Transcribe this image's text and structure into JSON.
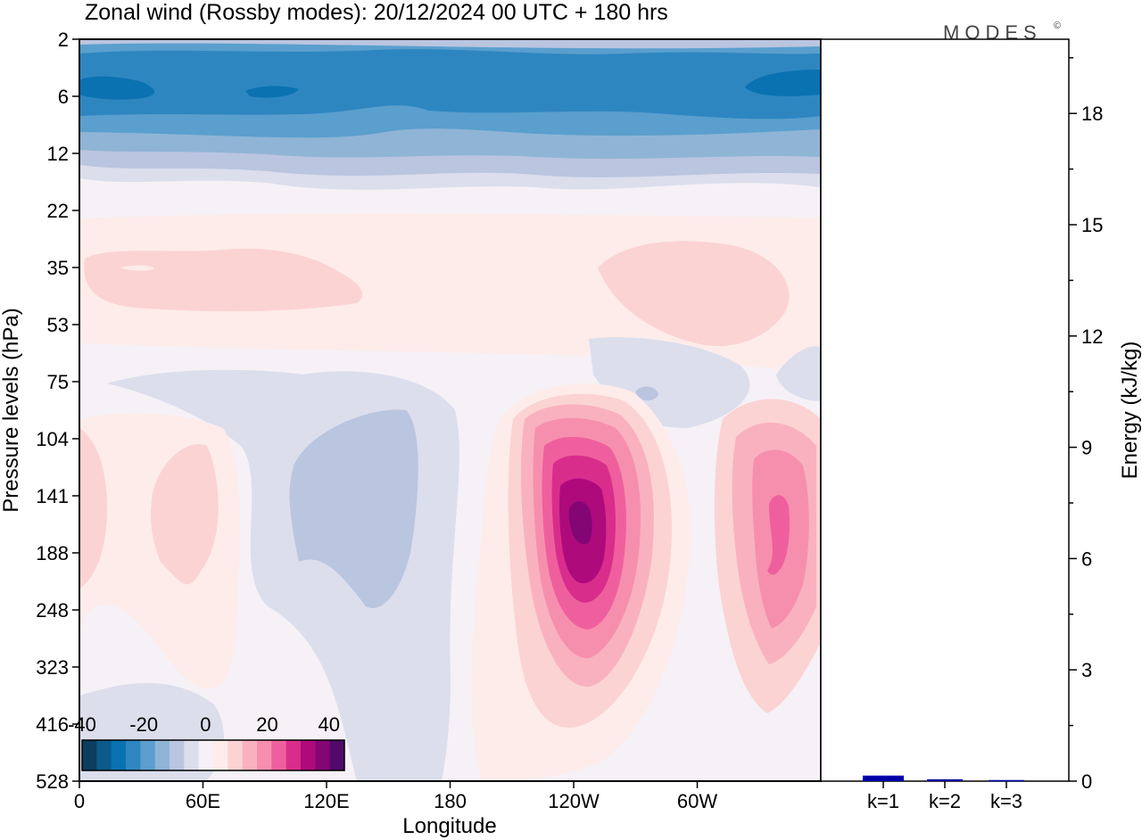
{
  "title": "Zonal wind (Rossby modes):  20/12/2024  00 UTC  + 180 hrs",
  "brand": "MODES",
  "brand_mark": "©",
  "chart_data": [
    {
      "type": "heatmap",
      "variable": "Zonal wind (Rossby modes)",
      "xlabel": "Longitude",
      "ylabel": "Pressure levels (hPa)",
      "x_ticks": [
        "0",
        "60E",
        "120E",
        "180",
        "120W",
        "60W"
      ],
      "x_tick_values": [
        0,
        60,
        120,
        180,
        240,
        300
      ],
      "xlim": [
        0,
        360
      ],
      "y_ticks": [
        "2",
        "6",
        "12",
        "22",
        "35",
        "53",
        "75",
        "104",
        "141",
        "188",
        "248",
        "323",
        "416",
        "528"
      ],
      "y_scale": "ordinal (levels equally spaced)",
      "colorbar": {
        "tick_labels": [
          "-40",
          "-20",
          "0",
          "20",
          "40"
        ],
        "levels": [
          -40,
          -35,
          -30,
          -25,
          -20,
          -15,
          -10,
          -5,
          0,
          5,
          10,
          15,
          20,
          25,
          30,
          35,
          40,
          45
        ],
        "colors": [
          "#0b3d5e",
          "#0a5a8c",
          "#0a72b0",
          "#2e86c1",
          "#5a9fcd",
          "#8fb4d6",
          "#bac5e0",
          "#dcdeec",
          "#f5f1f6",
          "#fdecea",
          "#fbd3d3",
          "#f9b1bf",
          "#f68fae",
          "#ef5f9e",
          "#d92d8c",
          "#ae0a7c",
          "#840574",
          "#4f0a6b"
        ]
      },
      "features": [
        {
          "description": "easterly jet band",
          "lon_range": [
            0,
            360
          ],
          "level_range": [
            "2",
            "12"
          ],
          "value": -30
        },
        {
          "description": "westerly maximum",
          "lon": 242,
          "level": "141-188",
          "value": 42
        },
        {
          "description": "westerly maximum",
          "lon": 338,
          "level": "141-188",
          "value": 25
        },
        {
          "description": "weak easterlies",
          "lon": 120,
          "level": "104-248",
          "value": -7
        }
      ]
    },
    {
      "type": "bar",
      "ylabel": "Energy (kJ/kg)",
      "categories": [
        "k=1",
        "k=2",
        "k=3"
      ],
      "values": [
        0.15,
        0.05,
        0.03
      ],
      "ylim": [
        0,
        20
      ],
      "y_ticks": [
        "0",
        "3",
        "6",
        "9",
        "12",
        "15",
        "18"
      ],
      "color": "#0000aa"
    }
  ]
}
